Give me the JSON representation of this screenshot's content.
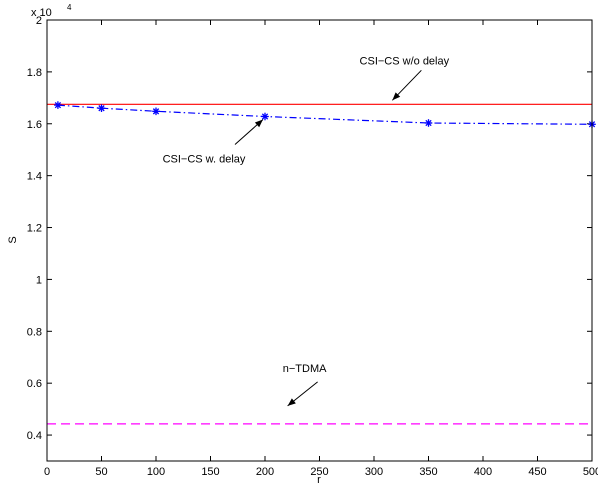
{
  "chart_data": {
    "type": "line",
    "xlabel": "r",
    "ylabel": "S",
    "y_exponent_label": "x 10",
    "y_exponent": "4",
    "xlim": [
      0,
      500
    ],
    "ylim": [
      0.3,
      2.0
    ],
    "x_ticks": [
      0,
      50,
      100,
      150,
      200,
      250,
      300,
      350,
      400,
      450,
      500
    ],
    "y_ticks": [
      0.4,
      0.6,
      0.8,
      1.0,
      1.2,
      1.4,
      1.6,
      1.8,
      2.0
    ],
    "y_tick_labels": [
      "0.4",
      "0.6",
      "0.8",
      "1",
      "1.2",
      "1.4",
      "1.6",
      "1.8",
      "2"
    ],
    "grid": false,
    "series": [
      {
        "name": "CSI−CS w/o delay",
        "color": "#ff0000",
        "style": "solid",
        "marker": "none",
        "x": [
          0,
          500
        ],
        "y": [
          1.675,
          1.675
        ]
      },
      {
        "name": "CSI−CS w. delay",
        "color": "#0000ff",
        "style": "dashdot",
        "marker": "asterisk",
        "x": [
          10,
          50,
          100,
          200,
          350,
          500
        ],
        "y": [
          1.672,
          1.66,
          1.648,
          1.628,
          1.603,
          1.598
        ]
      },
      {
        "name": "n−TDMA",
        "color": "#ff00ff",
        "style": "dashed",
        "marker": "none",
        "x": [
          0,
          500
        ],
        "y": [
          0.443,
          0.443
        ]
      }
    ],
    "annotations": [
      {
        "text": "CSI−CS w/o delay",
        "series": 0,
        "at_x": 315,
        "at_y": 1.675
      },
      {
        "text": "CSI−CS w. delay",
        "series": 1,
        "at_x": 200,
        "at_y": 1.628
      },
      {
        "text": "n−TDMA",
        "series": 2,
        "at_x": 218,
        "at_y": 0.443
      }
    ]
  }
}
